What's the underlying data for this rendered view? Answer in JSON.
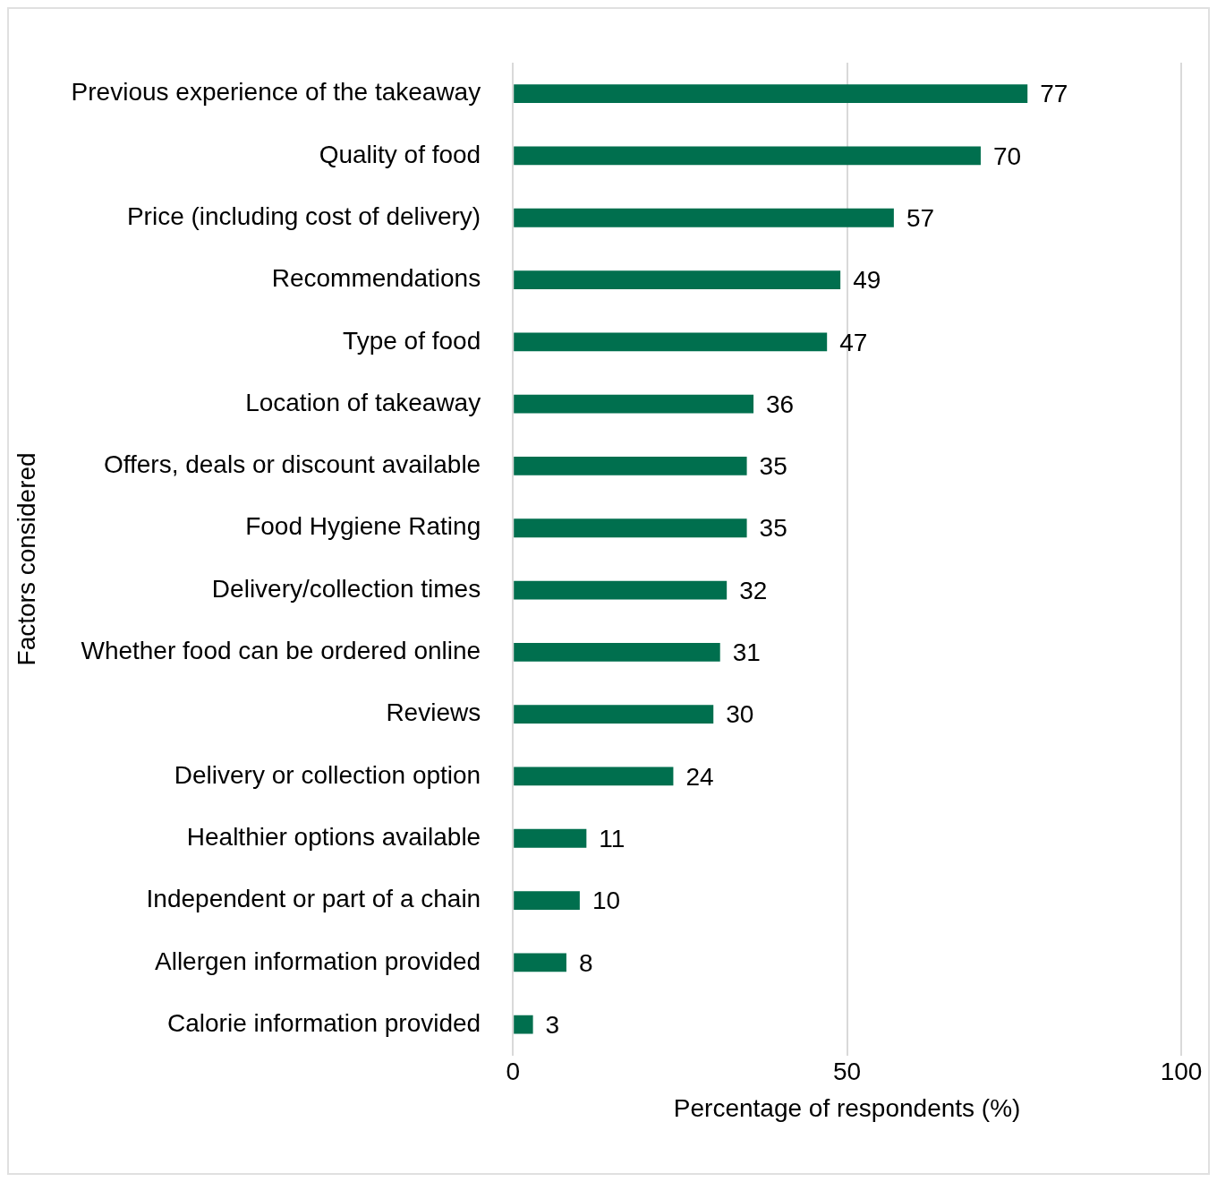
{
  "chart_data": {
    "type": "bar",
    "orientation": "horizontal",
    "xlabel": "Percentage of respondents (%)",
    "ylabel": "Factors considered",
    "categories": [
      "Previous experience of the takeaway",
      "Quality of food",
      "Price (including cost of delivery)",
      "Recommendations",
      "Type of food",
      "Location of takeaway",
      "Offers, deals or discount available",
      "Food Hygiene Rating",
      "Delivery/collection times",
      "Whether food can be ordered online",
      "Reviews",
      "Delivery or collection option",
      "Healthier options available",
      "Independent or part of a chain",
      "Allergen information provided",
      "Calorie information provided"
    ],
    "values": [
      77,
      70,
      57,
      49,
      47,
      36,
      35,
      35,
      32,
      31,
      30,
      24,
      11,
      10,
      8,
      3
    ],
    "color": "#006f4e",
    "xlim": [
      0,
      100
    ],
    "xticks": [
      0,
      50,
      100
    ],
    "grid": "x",
    "data_labels": true
  }
}
